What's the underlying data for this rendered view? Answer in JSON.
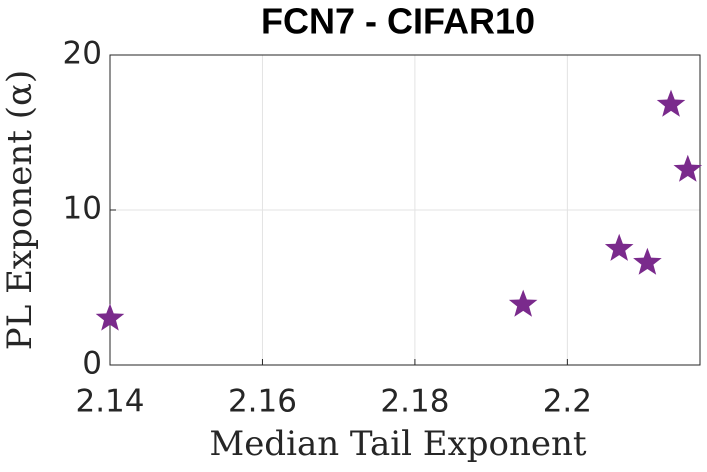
{
  "chart_data": {
    "type": "scatter",
    "title": "FCN7 - CIFAR10",
    "xlabel": "Median Tail Exponent",
    "ylabel": "PL Exponent (α)",
    "series": [
      {
        "color": "#7a2a8c",
        "marker": "star",
        "x": [
          2.14,
          2.1942,
          2.2068,
          2.2105,
          2.2136,
          2.2158
        ],
        "values": [
          3.0,
          3.9,
          7.5,
          6.6,
          16.8,
          12.6
        ]
      }
    ],
    "xlim": [
      2.14,
      2.2174
    ],
    "xticks": [
      2.14,
      2.16,
      2.18,
      2.2
    ],
    "ylim": [
      0,
      20
    ],
    "yticks": [
      0,
      10,
      20
    ],
    "grid": true
  }
}
